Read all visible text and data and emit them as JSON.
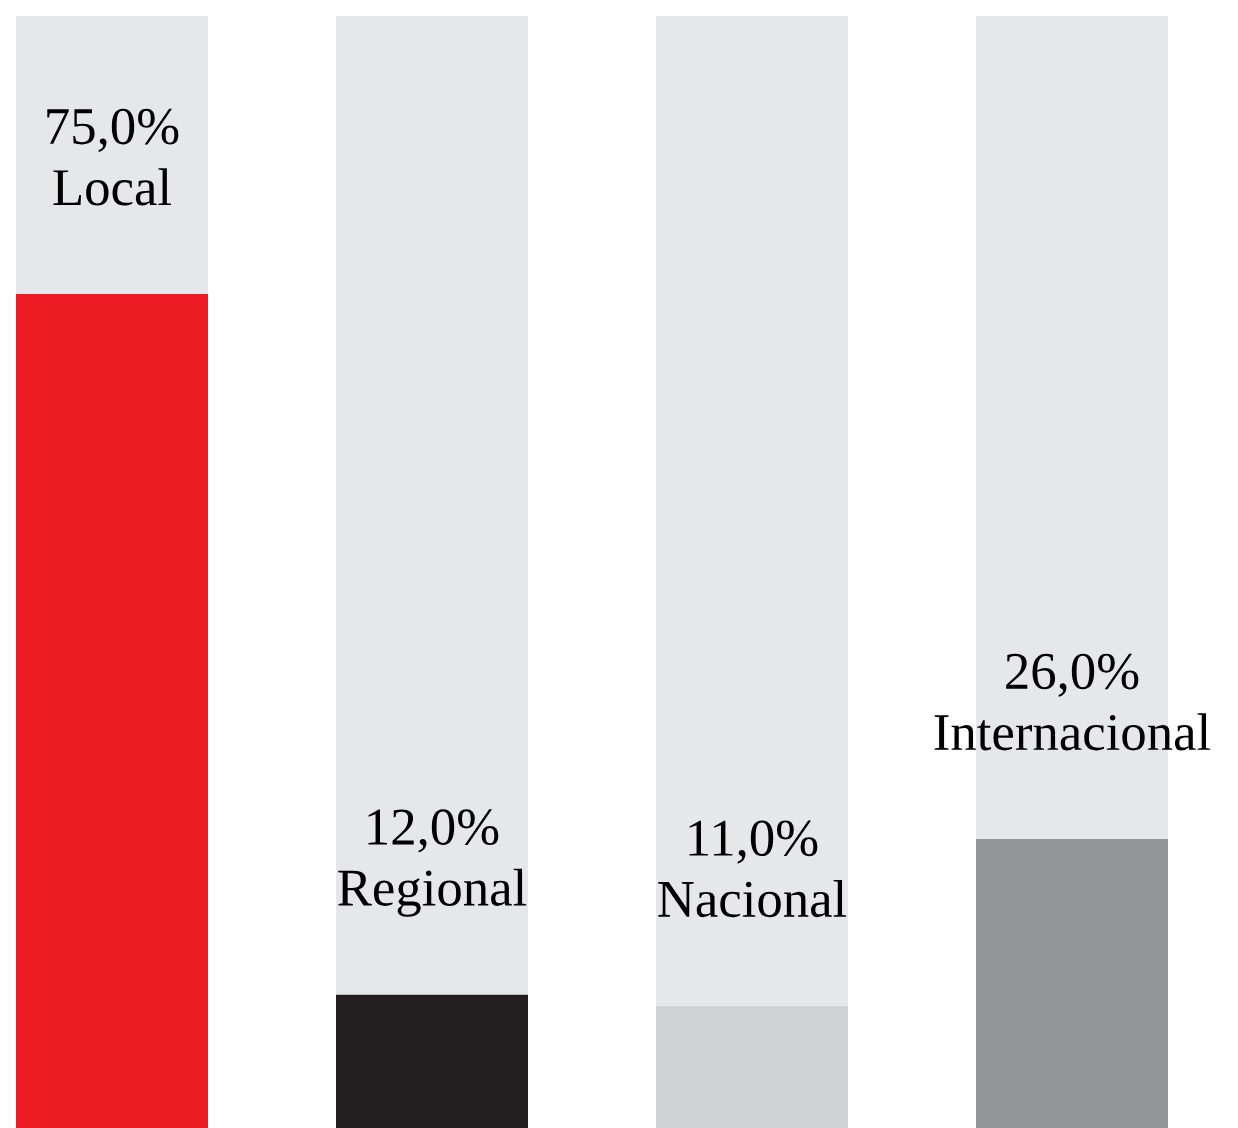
{
  "chart_data": {
    "type": "bar",
    "stacked": true,
    "categories": [
      "Local",
      "Regional",
      "Nacional",
      "Internacional"
    ],
    "ylim": [
      0,
      100
    ],
    "series": [
      {
        "colors": [
          "#ed1c24",
          "#231f20",
          "#d1d2d4",
          "#939598"
        ],
        "values": [
          75,
          12,
          11,
          26
        ],
        "value_labels": [
          "75,0%",
          "12,0%",
          "11,0%",
          "26,0%"
        ]
      },
      {
        "color": "#e6e7e8",
        "values": [
          25,
          88,
          89,
          74
        ]
      }
    ],
    "legend": false
  }
}
